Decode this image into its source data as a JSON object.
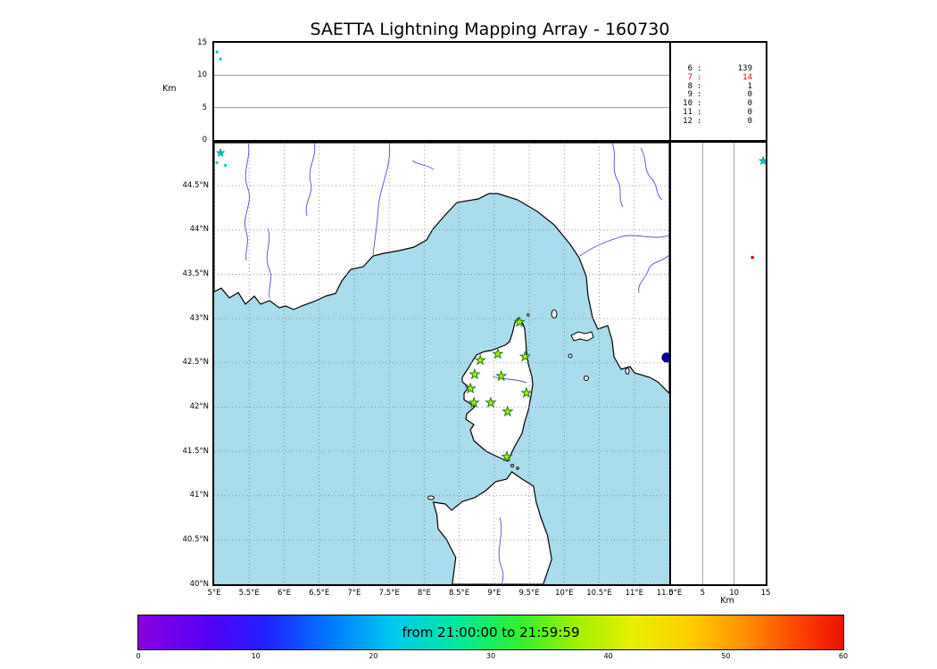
{
  "title": "SAETTA Lightning Mapping Array - 160730",
  "alt_time_panel": {
    "axis_label": "Km",
    "ticks": [
      "15",
      "10",
      "5",
      "0"
    ]
  },
  "station_counts": {
    "separator": ":",
    "rows": [
      {
        "station": "6",
        "count": "139",
        "highlight": false
      },
      {
        "station": "7",
        "count": "14",
        "highlight": true
      },
      {
        "station": "8",
        "count": "1",
        "highlight": false
      },
      {
        "station": "9",
        "count": "0",
        "highlight": false
      },
      {
        "station": "10",
        "count": "0",
        "highlight": false
      },
      {
        "station": "11",
        "count": "0",
        "highlight": false
      },
      {
        "station": "12",
        "count": "0",
        "highlight": false
      }
    ]
  },
  "map": {
    "lat_labels": [
      "44.5°N",
      "44°N",
      "43.5°N",
      "43°N",
      "42.5°N",
      "42°N",
      "41.5°N",
      "41°N",
      "40.5°N",
      "40°N"
    ],
    "lon_labels": [
      "5°E",
      "5.5°E",
      "6°E",
      "6.5°E",
      "7°E",
      "7.5°E",
      "8°E",
      "8.5°E",
      "9°E",
      "9.5°E",
      "10°E",
      "10.5°E",
      "11°E",
      "11.5°E"
    ]
  },
  "alt_lat_panel": {
    "axis_label": "Km",
    "ticks": [
      "0",
      "5",
      "10",
      "15"
    ]
  },
  "colorbar": {
    "label": "from 21:00:00 to 21:59:59",
    "ticks": [
      "0",
      "10",
      "20",
      "30",
      "40",
      "50",
      "60"
    ]
  },
  "colors": {
    "sea": "#a9dcec",
    "station_fill": "#aaf000",
    "station_edge": "#1f7a1f",
    "highlight_text": "#ff0000",
    "cyan_point": "#00c8c8",
    "red_point": "#d00000",
    "navy_point": "#00008b"
  },
  "chart_data": {
    "type": "scatter",
    "title": "SAETTA Lightning Mapping Array - 160730",
    "date": "160730",
    "time_window": {
      "start": "21:00:00",
      "end": "21:59:59"
    },
    "colorbar": {
      "units": "minutes",
      "range": [
        0,
        60
      ],
      "tick_step": 10
    },
    "station_counts": {
      "min_stations": [
        6,
        7,
        8,
        9,
        10,
        11,
        12
      ],
      "source_counts": [
        139,
        14,
        1,
        0,
        0,
        0,
        0
      ],
      "highlighted_row": 7
    },
    "map_panel": {
      "lon_range": [
        5.0,
        11.5
      ],
      "lat_range": [
        40.0,
        44.985
      ],
      "grid_step_deg": 0.5,
      "stations_lon_lat": [
        [
          9.36,
          42.96
        ],
        [
          8.8,
          42.53
        ],
        [
          9.05,
          42.6
        ],
        [
          9.44,
          42.57
        ],
        [
          8.72,
          42.37
        ],
        [
          9.1,
          42.35
        ],
        [
          8.66,
          42.21
        ],
        [
          9.46,
          42.16
        ],
        [
          8.71,
          42.05
        ],
        [
          8.95,
          42.05
        ],
        [
          9.19,
          41.95
        ],
        [
          9.18,
          41.44
        ]
      ],
      "points": [
        {
          "lon": 5.09,
          "lat": 44.87,
          "marker": "star",
          "color": "#00c8c8"
        },
        {
          "lon": 5.04,
          "lat": 44.76,
          "marker": "dot",
          "color": "#00c8c8"
        },
        {
          "lon": 5.16,
          "lat": 44.73,
          "marker": "dot",
          "color": "#00c8c8"
        },
        {
          "lon": 11.46,
          "lat": 42.56,
          "marker": "dot",
          "color": "#00008b",
          "size": 5.5
        }
      ]
    },
    "alt_time_panel": {
      "alt_range_km": [
        0,
        15
      ],
      "gridlines_km": [
        5,
        10
      ],
      "points": [
        {
          "t_frac": 0.006,
          "alt_km": 13.6,
          "color": "#00c8c8"
        },
        {
          "t_frac": 0.014,
          "alt_km": 12.5,
          "color": "#00c8c8"
        }
      ]
    },
    "alt_lat_panel": {
      "alt_range_km": [
        0,
        15
      ],
      "gridlines_km": [
        5,
        10
      ],
      "points": [
        {
          "alt_km": 14.6,
          "lat": 44.78,
          "marker": "star",
          "color": "#00c8c8"
        },
        {
          "alt_km": 12.9,
          "lat": 43.69,
          "marker": "dot",
          "color": "#d00000"
        }
      ]
    }
  }
}
